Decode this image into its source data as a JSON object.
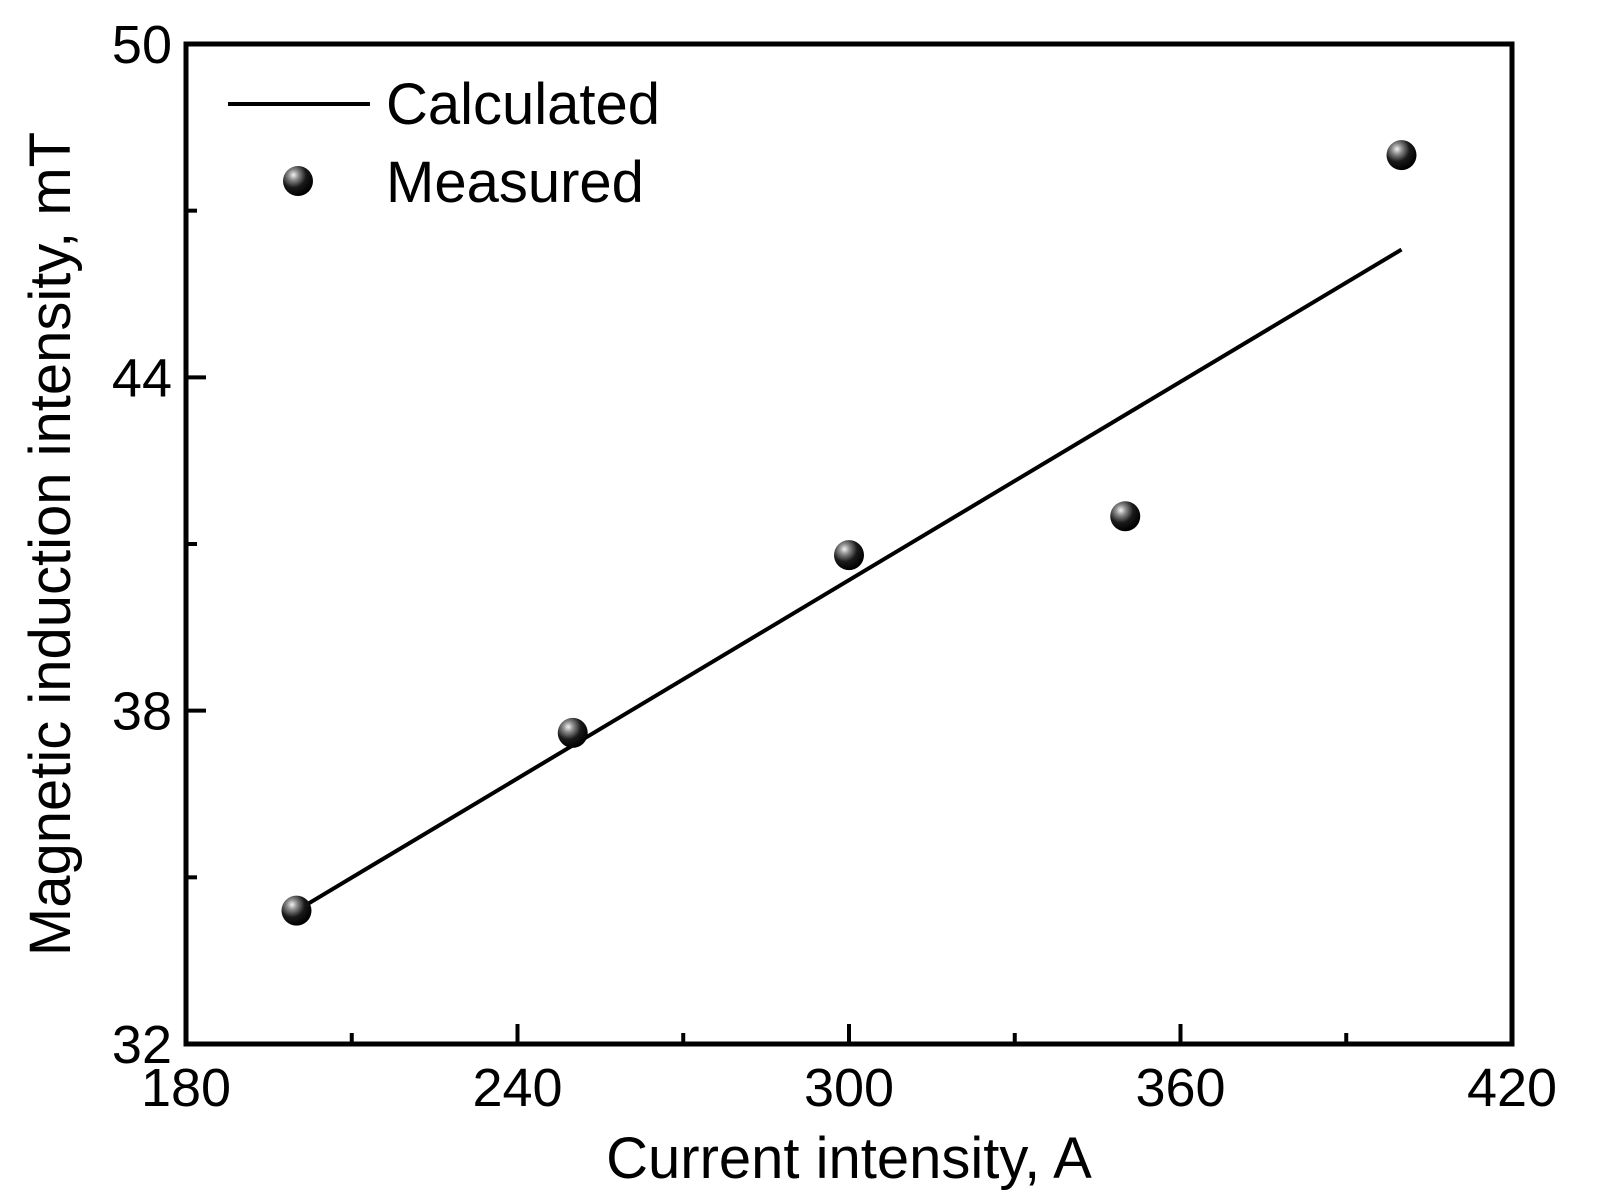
{
  "chart_data": {
    "type": "scatter",
    "title": "",
    "xlabel": "Current intensity, A",
    "ylabel": "Magnetic induction intensity, mT",
    "xlim": [
      180,
      420
    ],
    "ylim": [
      32,
      50
    ],
    "xticks": [
      180,
      240,
      300,
      360,
      420
    ],
    "yticks": [
      32,
      38,
      44,
      50
    ],
    "x_minor_ticks": [
      210,
      270,
      330,
      390
    ],
    "y_minor_ticks": [
      35,
      41,
      47
    ],
    "grid": false,
    "legend_position": "top-left",
    "series": [
      {
        "name": "Calculated",
        "style": "line",
        "color": "#000000",
        "x": [
          200,
          400
        ],
        "y": [
          34.4,
          46.3
        ]
      },
      {
        "name": "Measured",
        "style": "markers",
        "color": "#000000",
        "x": [
          200,
          250,
          300,
          350,
          400
        ],
        "y": [
          34.4,
          37.6,
          40.8,
          41.5,
          48.0
        ]
      }
    ]
  }
}
